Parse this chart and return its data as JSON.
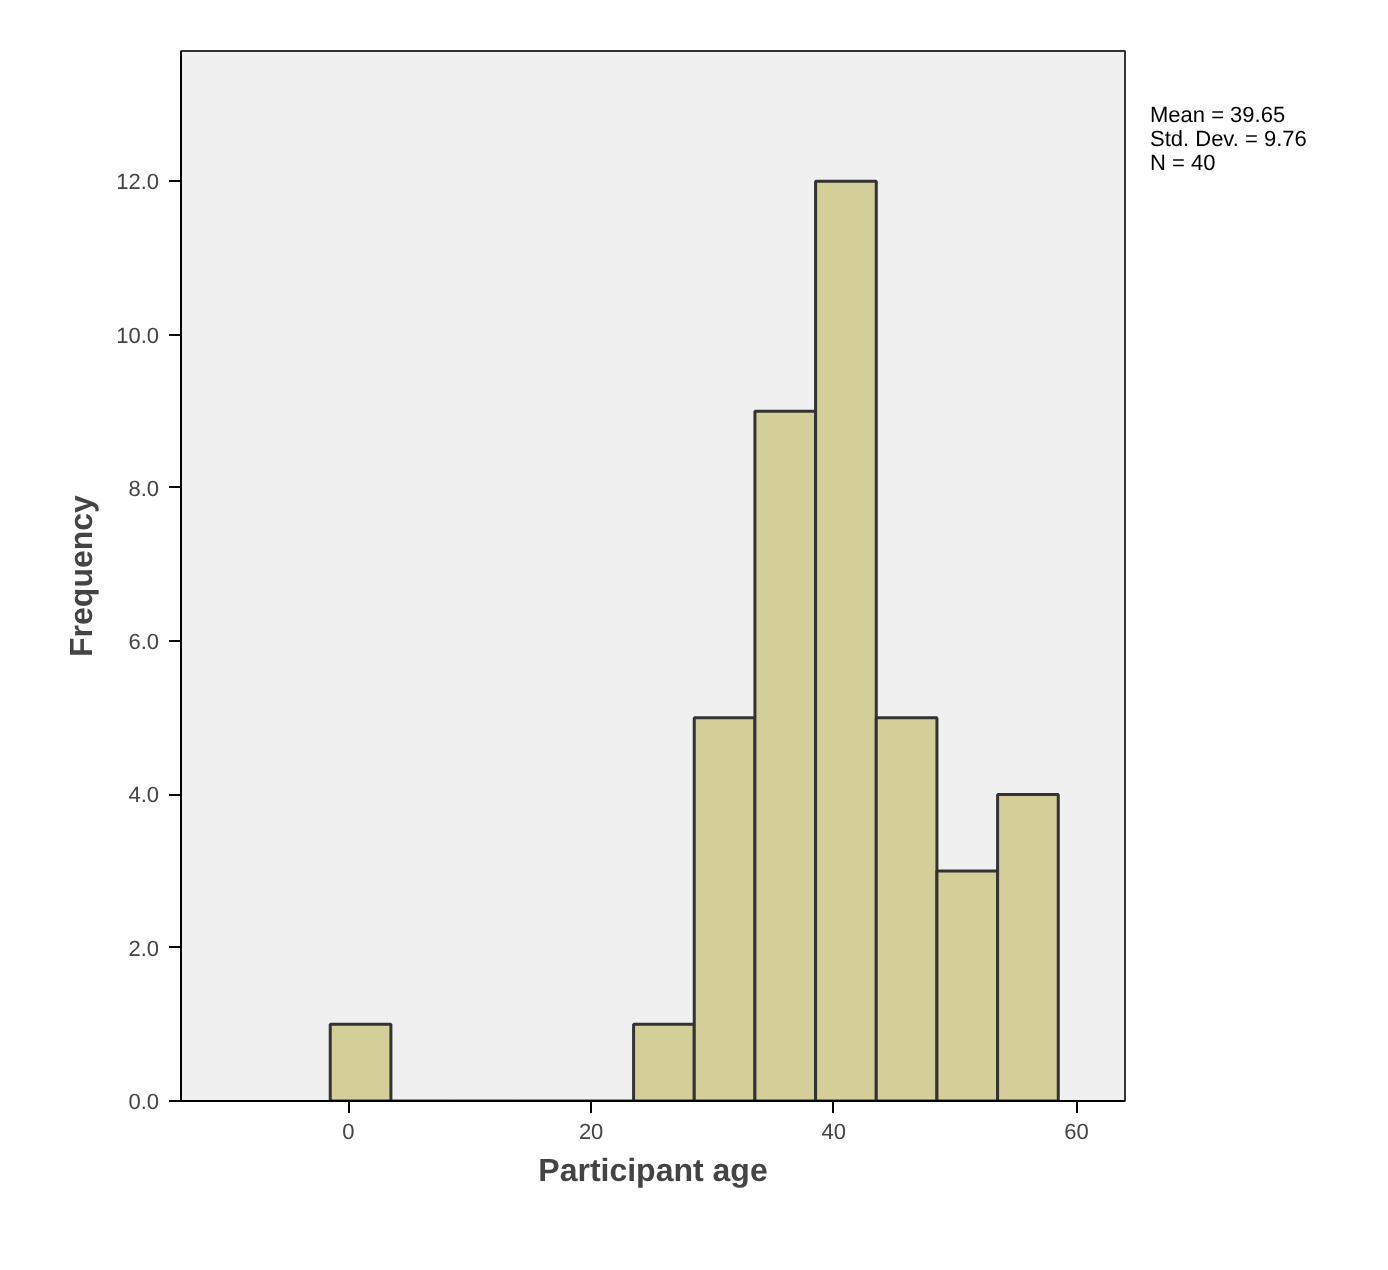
{
  "chart_data": {
    "type": "histogram",
    "xlabel": "Participant age",
    "ylabel": "Frequency",
    "bins": [
      -1.5,
      3.5,
      8.5,
      13.5,
      18.5,
      23.5,
      28.5,
      33.5,
      38.5,
      43.5,
      48.5,
      53.5,
      58.5
    ],
    "values": [
      1,
      0,
      0,
      0,
      0,
      1,
      5,
      9,
      12,
      5,
      3,
      4
    ],
    "color": "#d4cf98",
    "xlim": [
      -13.8,
      64
    ],
    "xticks": [
      0,
      20,
      40,
      60
    ],
    "ylim": [
      0,
      13.7
    ],
    "yticks": [
      {
        "value": 0,
        "label": "0.0"
      },
      {
        "value": 2,
        "label": "2.0"
      },
      {
        "value": 4,
        "label": "4.0"
      },
      {
        "value": 6,
        "label": "6.0"
      },
      {
        "value": 8,
        "label": "8.0"
      },
      {
        "value": 10,
        "label": "10.0"
      },
      {
        "value": 12,
        "label": "12.0"
      }
    ],
    "annotations": [
      "Mean = 39.65",
      "Std. Dev. = 9.76",
      "N = 40"
    ],
    "grid": false
  }
}
